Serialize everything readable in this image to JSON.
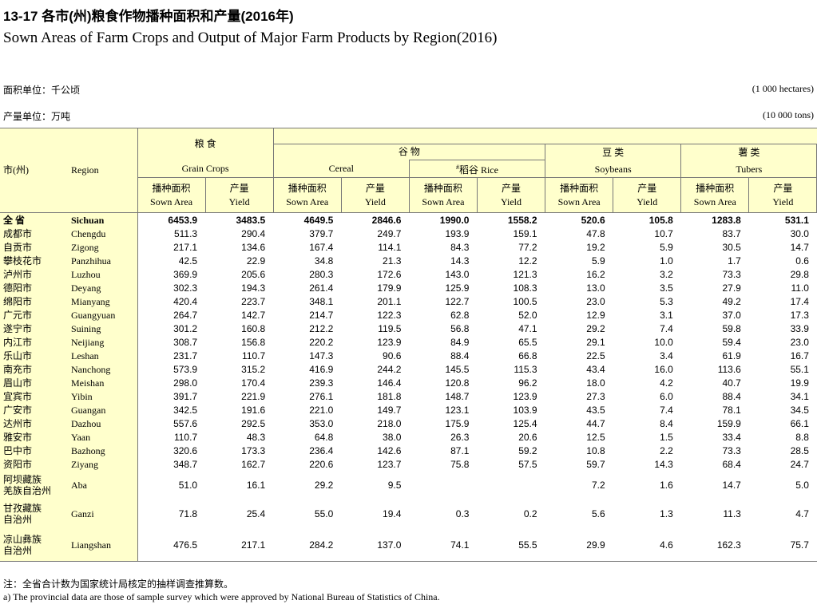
{
  "header": {
    "title": "13-17 各市(州)粮食作物播种面积和产量(2016年)",
    "subtitle": "Sown Areas of Farm Crops and Output of Major Farm Products by Region(2016)"
  },
  "units": {
    "area_zh": "面积单位：千公顷",
    "area_en": "(1 000 hectares)",
    "output_zh": "产量单位：万吨",
    "output_en": "(10 000 tons)"
  },
  "table": {
    "col_region_zh": "市(州)",
    "col_region_en": "Region",
    "groups": {
      "grain_zh": "粮 食",
      "grain_en": "Grain Crops",
      "cereal_zh": "谷 物",
      "cereal_en": "Cereal",
      "rice_mark": "#",
      "rice": "稻谷 Rice",
      "soy_zh": "豆 类",
      "soy_en": "Soybeans",
      "tuber_zh": "薯 类",
      "tuber_en": "Tubers"
    },
    "sub_headers": [
      {
        "zh": "播种面积",
        "en": "Sown Area"
      },
      {
        "zh": "产量",
        "en": "Yield"
      },
      {
        "zh": "播种面积",
        "en": "Sown Area"
      },
      {
        "zh": "产量",
        "en": "Yield"
      },
      {
        "zh": "播种面积",
        "en": "Sown Area"
      },
      {
        "zh": "产量",
        "en": "Yield"
      },
      {
        "zh": "播种面积",
        "en": "Sown Area"
      },
      {
        "zh": "产量",
        "en": "Yield"
      },
      {
        "zh": "播种面积",
        "en": "Sown Area"
      },
      {
        "zh": "产量",
        "en": "Yield"
      }
    ],
    "rows": [
      {
        "region_zh": "全 省",
        "region_en": "Sichuan",
        "values": [
          "6453.9",
          "3483.5",
          "4649.5",
          "2846.6",
          "1990.0",
          "1558.2",
          "520.6",
          "105.8",
          "1283.8",
          "531.1"
        ]
      },
      {
        "region_zh": "成都市",
        "region_en": "Chengdu",
        "values": [
          "511.3",
          "290.4",
          "379.7",
          "249.7",
          "193.9",
          "159.1",
          "47.8",
          "10.7",
          "83.7",
          "30.0"
        ]
      },
      {
        "region_zh": "自贡市",
        "region_en": "Zigong",
        "values": [
          "217.1",
          "134.6",
          "167.4",
          "114.1",
          "84.3",
          "77.2",
          "19.2",
          "5.9",
          "30.5",
          "14.7"
        ]
      },
      {
        "region_zh": "攀枝花市",
        "region_en": "Panzhihua",
        "values": [
          "42.5",
          "22.9",
          "34.8",
          "21.3",
          "14.3",
          "12.2",
          "5.9",
          "1.0",
          "1.7",
          "0.6"
        ]
      },
      {
        "region_zh": "泸州市",
        "region_en": "Luzhou",
        "values": [
          "369.9",
          "205.6",
          "280.3",
          "172.6",
          "143.0",
          "121.3",
          "16.2",
          "3.2",
          "73.3",
          "29.8"
        ]
      },
      {
        "region_zh": "德阳市",
        "region_en": "Deyang",
        "values": [
          "302.3",
          "194.3",
          "261.4",
          "179.9",
          "125.9",
          "108.3",
          "13.0",
          "3.5",
          "27.9",
          "11.0"
        ]
      },
      {
        "region_zh": "绵阳市",
        "region_en": "Mianyang",
        "values": [
          "420.4",
          "223.7",
          "348.1",
          "201.1",
          "122.7",
          "100.5",
          "23.0",
          "5.3",
          "49.2",
          "17.4"
        ]
      },
      {
        "region_zh": "广元市",
        "region_en": "Guangyuan",
        "values": [
          "264.7",
          "142.7",
          "214.7",
          "122.3",
          "62.8",
          "52.0",
          "12.9",
          "3.1",
          "37.0",
          "17.3"
        ]
      },
      {
        "region_zh": "遂宁市",
        "region_en": "Suining",
        "values": [
          "301.2",
          "160.8",
          "212.2",
          "119.5",
          "56.8",
          "47.1",
          "29.2",
          "7.4",
          "59.8",
          "33.9"
        ]
      },
      {
        "region_zh": "内江市",
        "region_en": "Neijiang",
        "values": [
          "308.7",
          "156.8",
          "220.2",
          "123.9",
          "84.9",
          "65.5",
          "29.1",
          "10.0",
          "59.4",
          "23.0"
        ]
      },
      {
        "region_zh": "乐山市",
        "region_en": "Leshan",
        "values": [
          "231.7",
          "110.7",
          "147.3",
          "90.6",
          "88.4",
          "66.8",
          "22.5",
          "3.4",
          "61.9",
          "16.7"
        ]
      },
      {
        "region_zh": "南充市",
        "region_en": "Nanchong",
        "values": [
          "573.9",
          "315.2",
          "416.9",
          "244.2",
          "145.5",
          "115.3",
          "43.4",
          "16.0",
          "113.6",
          "55.1"
        ]
      },
      {
        "region_zh": "眉山市",
        "region_en": "Meishan",
        "values": [
          "298.0",
          "170.4",
          "239.3",
          "146.4",
          "120.8",
          "96.2",
          "18.0",
          "4.2",
          "40.7",
          "19.9"
        ]
      },
      {
        "region_zh": "宜宾市",
        "region_en": "Yibin",
        "values": [
          "391.7",
          "221.9",
          "276.1",
          "181.8",
          "148.7",
          "123.9",
          "27.3",
          "6.0",
          "88.4",
          "34.1"
        ]
      },
      {
        "region_zh": "广安市",
        "region_en": "Guangan",
        "values": [
          "342.5",
          "191.6",
          "221.0",
          "149.7",
          "123.1",
          "103.9",
          "43.5",
          "7.4",
          "78.1",
          "34.5"
        ]
      },
      {
        "region_zh": "达州市",
        "region_en": "Dazhou",
        "values": [
          "557.6",
          "292.5",
          "353.0",
          "218.0",
          "175.9",
          "125.4",
          "44.7",
          "8.4",
          "159.9",
          "66.1"
        ]
      },
      {
        "region_zh": "雅安市",
        "region_en": "Yaan",
        "values": [
          "110.7",
          "48.3",
          "64.8",
          "38.0",
          "26.3",
          "20.6",
          "12.5",
          "1.5",
          "33.4",
          "8.8"
        ]
      },
      {
        "region_zh": "巴中市",
        "region_en": "Bazhong",
        "values": [
          "320.6",
          "173.3",
          "236.4",
          "142.6",
          "87.1",
          "59.2",
          "10.8",
          "2.2",
          "73.3",
          "28.5"
        ]
      },
      {
        "region_zh": "资阳市",
        "region_en": "Ziyang",
        "values": [
          "348.7",
          "162.7",
          "220.6",
          "123.7",
          "75.8",
          "57.5",
          "59.7",
          "14.3",
          "68.4",
          "24.7"
        ]
      },
      {
        "region_zh": "阿坝藏族\n羌族自治州",
        "region_en": "Aba",
        "values": [
          "51.0",
          "16.1",
          "29.2",
          "9.5",
          null,
          null,
          "7.2",
          "1.6",
          "14.7",
          "5.0"
        ]
      },
      {
        "region_zh": "甘孜藏族\n自治州",
        "region_en": "Ganzi",
        "values": [
          "71.8",
          "25.4",
          "55.0",
          "19.4",
          "0.3",
          "0.2",
          "5.6",
          "1.3",
          "11.3",
          "4.7"
        ]
      },
      {
        "region_zh": "凉山彝族\n自治州",
        "region_en": "Liangshan",
        "values": [
          "476.5",
          "217.1",
          "284.2",
          "137.0",
          "74.1",
          "55.5",
          "29.9",
          "4.6",
          "162.3",
          "75.7"
        ]
      }
    ]
  },
  "notes": [
    "注：全省合计数为国家统计局核定的抽样调查推算数。",
    "a) The provincial data are those of sample survey which were approved by National Bureau of Statistics of China."
  ]
}
